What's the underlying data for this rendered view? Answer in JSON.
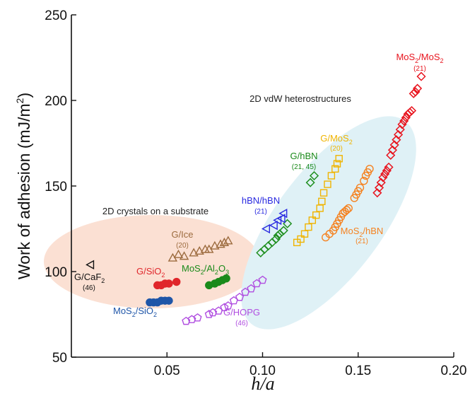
{
  "chart_data": {
    "type": "scatter",
    "title": "",
    "xlabel": "h/a",
    "ylabel": "Work of adhesion (mJ/m2)",
    "xlim": [
      0.0,
      0.2
    ],
    "ylim": [
      50,
      250
    ],
    "xticks": [
      "0.05",
      "0.10",
      "0.15",
      "0.20"
    ],
    "yticks": [
      "50",
      "100",
      "150",
      "200",
      "250"
    ],
    "grid": false,
    "regions": [
      {
        "label": "2D crystals on a substrate",
        "color": "#fbe0d3"
      },
      {
        "label": "2D vdW heterostructures",
        "color": "#dff1f6"
      }
    ],
    "series": [
      {
        "name": "G/CaF2",
        "ref": "(46)",
        "marker": "triangle-left-open",
        "color": "#111111",
        "x": [
          0.01
        ],
        "y": [
          104
        ]
      },
      {
        "name": "G/Ice",
        "ref": "(20)",
        "marker": "triangle-open",
        "color": "#9c6b3e",
        "x": [
          0.053,
          0.056,
          0.059,
          0.064,
          0.067,
          0.07,
          0.072,
          0.075,
          0.078,
          0.08,
          0.082
        ],
        "y": [
          108,
          110,
          109,
          111,
          112,
          113,
          113,
          115,
          116,
          117,
          118
        ]
      },
      {
        "name": "G/SiO2",
        "ref": "",
        "marker": "circle-filled",
        "color": "#e0262b",
        "x": [
          0.045,
          0.047,
          0.049,
          0.051,
          0.055
        ],
        "y": [
          92,
          92,
          93,
          93,
          94
        ]
      },
      {
        "name": "MoS2/Al2O3",
        "ref": "",
        "marker": "circle-filled",
        "color": "#1a8a1a",
        "x": [
          0.072,
          0.075,
          0.077,
          0.079,
          0.081
        ],
        "y": [
          92,
          93,
          94,
          95,
          96
        ]
      },
      {
        "name": "MoS2/SiO2",
        "ref": "",
        "marker": "circle-filled",
        "color": "#1f56a8",
        "x": [
          0.041,
          0.043,
          0.045,
          0.047,
          0.049,
          0.051
        ],
        "y": [
          82,
          82,
          82,
          83,
          83,
          83
        ]
      },
      {
        "name": "G/HOPG",
        "ref": "(46)",
        "marker": "pentagon-open",
        "color": "#b04ee0",
        "x": [
          0.06,
          0.063,
          0.066,
          0.072,
          0.074,
          0.077,
          0.08,
          0.082,
          0.085,
          0.088,
          0.091,
          0.094,
          0.097,
          0.1
        ],
        "y": [
          71,
          72,
          73,
          75,
          76,
          77,
          79,
          80,
          83,
          85,
          88,
          90,
          93,
          95
        ]
      },
      {
        "name": "G/hBN",
        "ref": "(21, 45)",
        "marker": "diamond-open",
        "color": "#1f8f1f",
        "x": [
          0.099,
          0.101,
          0.103,
          0.105,
          0.107,
          0.108,
          0.109,
          0.111,
          0.113,
          0.125,
          0.127
        ],
        "y": [
          111,
          113,
          115,
          117,
          119,
          121,
          122,
          124,
          128,
          152,
          156
        ]
      },
      {
        "name": "hBN/hBN",
        "ref": "(21)",
        "marker": "triangle-left-open",
        "color": "#2a2ae0",
        "x": [
          0.102,
          0.106,
          0.108,
          0.11,
          0.111
        ],
        "y": [
          125,
          127,
          130,
          131,
          134
        ]
      },
      {
        "name": "G/MoS2",
        "ref": "(20)",
        "marker": "square-open",
        "color": "#f0b400",
        "x": [
          0.118,
          0.12,
          0.122,
          0.124,
          0.126,
          0.128,
          0.13,
          0.131,
          0.132,
          0.134,
          0.136,
          0.138,
          0.139,
          0.14
        ],
        "y": [
          117,
          119,
          122,
          126,
          130,
          133,
          137,
          141,
          146,
          151,
          156,
          160,
          163,
          166
        ]
      },
      {
        "name": "MoS2/hBN",
        "ref": "(21)",
        "marker": "circle-open",
        "color": "#f58220",
        "x": [
          0.133,
          0.135,
          0.137,
          0.138,
          0.139,
          0.14,
          0.141,
          0.142,
          0.143,
          0.144,
          0.145,
          0.148,
          0.149,
          0.15,
          0.151,
          0.153,
          0.154,
          0.155,
          0.156
        ],
        "y": [
          120,
          122,
          124,
          126,
          128,
          130,
          132,
          134,
          135,
          136,
          137,
          143,
          145,
          147,
          149,
          153,
          156,
          158,
          160
        ]
      },
      {
        "name": "MoS2/MoS2",
        "ref": "(21)",
        "marker": "diamond-open",
        "color": "#e8141e",
        "x": [
          0.16,
          0.161,
          0.162,
          0.163,
          0.164,
          0.165,
          0.166,
          0.167,
          0.168,
          0.169,
          0.17,
          0.171,
          0.172,
          0.173,
          0.174,
          0.175,
          0.176,
          0.177,
          0.178,
          0.179,
          0.18,
          0.181,
          0.183
        ],
        "y": [
          146,
          149,
          152,
          155,
          157,
          159,
          161,
          168,
          171,
          174,
          177,
          180,
          183,
          186,
          188,
          190,
          192,
          193,
          194,
          204,
          205,
          207,
          214
        ]
      }
    ]
  },
  "annotations": {
    "region_substrate": "2D crystals on a substrate",
    "region_vdw": "2D vdW heterostructures",
    "g_caf2": {
      "base": "G/CaF",
      "sub": "2",
      "ref": "(46)"
    },
    "g_ice": {
      "label": "G/Ice",
      "ref": "(20)"
    },
    "g_sio2": {
      "base": "G/SiO",
      "sub": "2"
    },
    "mos2_al2o3": {
      "a": "MoS",
      "s1": "2",
      "b": "/Al",
      "s2": "2",
      "c": "O",
      "s3": "3"
    },
    "mos2_sio2": {
      "a": "MoS",
      "s1": "2",
      "b": "/SiO",
      "s2": "2"
    },
    "g_hopg": {
      "label": "G/HOPG",
      "ref": "(46)"
    },
    "g_hbn": {
      "label": "G/hBN",
      "ref": "(21, 45)"
    },
    "hbn_hbn": {
      "label": "hBN/hBN",
      "ref": "(21)"
    },
    "g_mos2": {
      "base": "G/MoS",
      "sub": "2",
      "ref": "(20)"
    },
    "mos2_hbn": {
      "a": "MoS",
      "s1": "2",
      "b": "/hBN",
      "ref": "(21)"
    },
    "mos2_mos2": {
      "a": "MoS",
      "s1": "2",
      "b": "/MoS",
      "s2": "2",
      "ref": "(21)"
    }
  }
}
